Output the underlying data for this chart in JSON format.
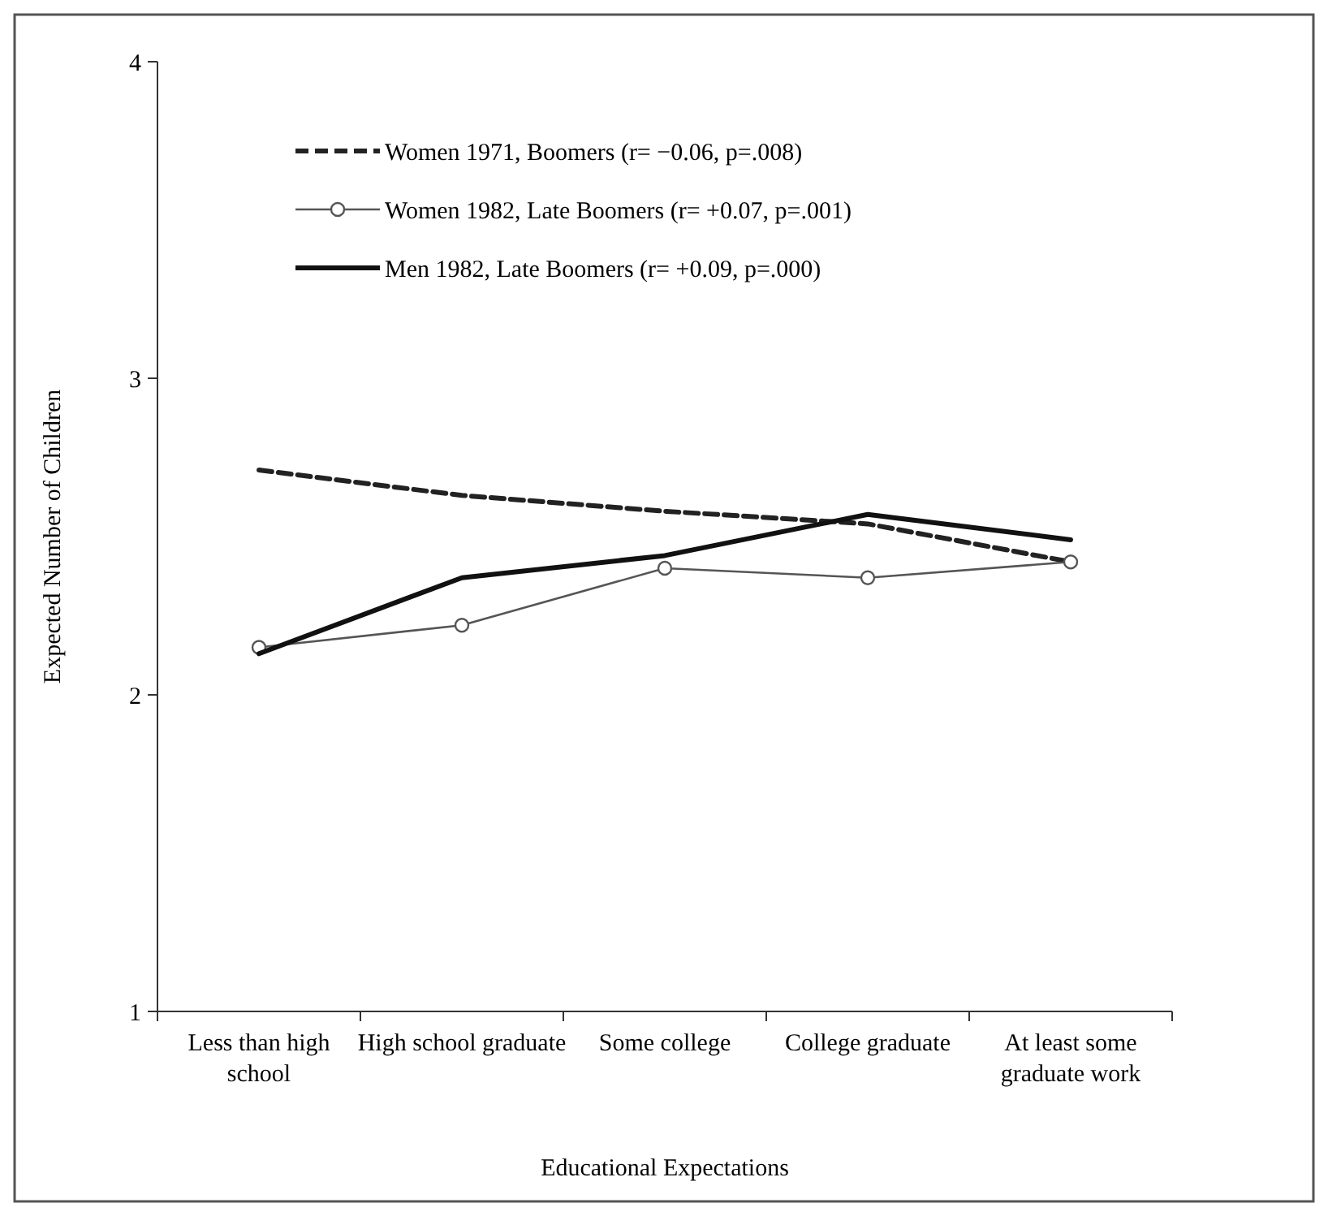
{
  "chart_data": {
    "type": "line",
    "xlabel": "Educational Expectations",
    "ylabel": "Expected Number of Children",
    "categories": [
      "Less than high school",
      "High school graduate",
      "Some college",
      "College graduate",
      "At least some graduate work"
    ],
    "ylim": [
      1,
      4
    ],
    "yticks": [
      1,
      2,
      3,
      4
    ],
    "grid": false,
    "legend": "top left",
    "series": [
      {
        "name": "Women 1971, Boomers (r= −0.06, p=.008)",
        "color": "#222222",
        "line_style": "dashed",
        "marker": "none",
        "values": [
          2.71,
          2.63,
          2.58,
          2.54,
          2.42
        ]
      },
      {
        "name": "Women 1982, Late Boomers (r= +0.07, p=.001)",
        "color": "#555555",
        "line_style": "solid",
        "marker": "circle",
        "values": [
          2.15,
          2.22,
          2.4,
          2.37,
          2.42
        ]
      },
      {
        "name": "Men 1982, Late Boomers (r= +0.09, p=.000)",
        "color": "#111111",
        "line_style": "solid",
        "marker": "none",
        "values": [
          2.13,
          2.37,
          2.44,
          2.57,
          2.49
        ]
      }
    ]
  }
}
